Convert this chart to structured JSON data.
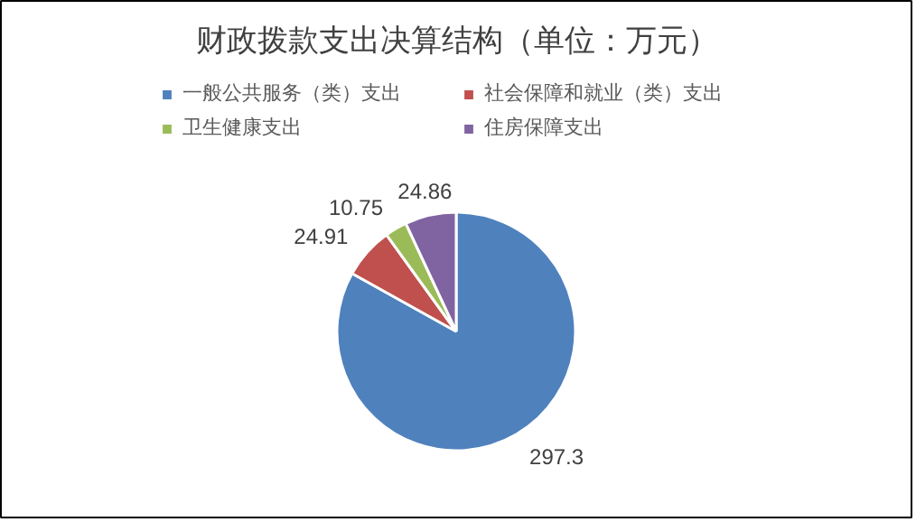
{
  "chart_data": {
    "type": "pie",
    "title": "财政拨款支出决算结构（单位：万元）",
    "categories": [
      "一般公共服务（类）支出",
      "社会保障和就业（类）支出",
      "卫生健康支出",
      "住房保障支出"
    ],
    "values": [
      297.3,
      24.91,
      10.75,
      24.86
    ],
    "colors": [
      "#4f81bd",
      "#c0504d",
      "#9bbb59",
      "#8064a2"
    ],
    "data_labels": true,
    "legend": "top"
  }
}
